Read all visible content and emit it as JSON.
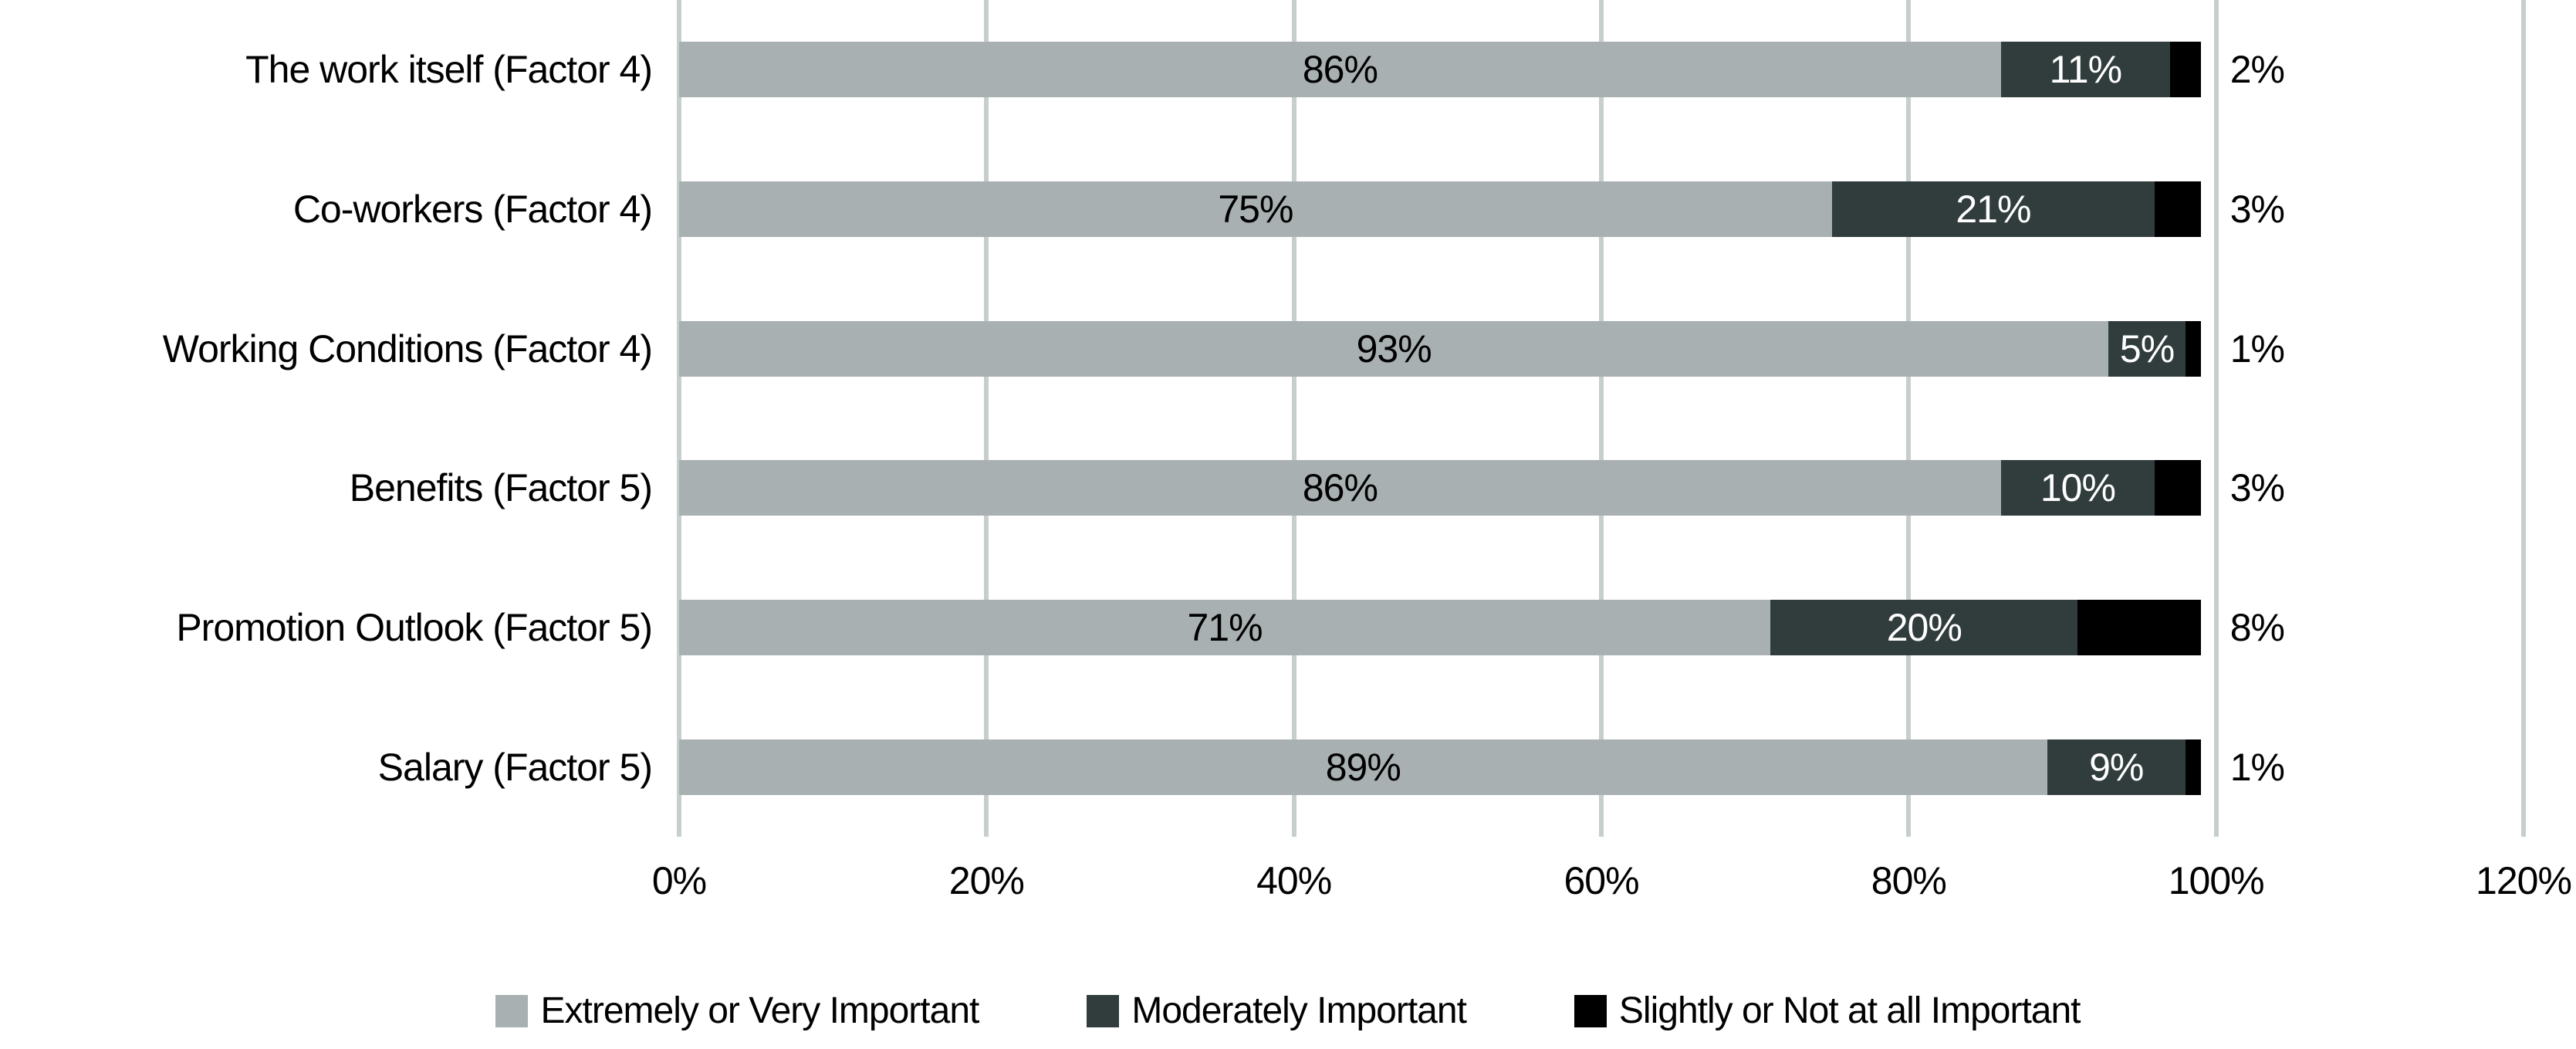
{
  "chart_data": {
    "type": "bar",
    "orientation": "horizontal_stacked",
    "title": "",
    "xlabel": "",
    "ylabel": "",
    "xlim": [
      0,
      120
    ],
    "x_ticks": [
      "0%",
      "20%",
      "40%",
      "60%",
      "80%",
      "100%",
      "120%"
    ],
    "grid": "vertical-only",
    "legend_position": "bottom",
    "background": "#ffffff",
    "gridline_color": "#c6cfcc",
    "categories": [
      "The work itself (Factor 4)",
      "Co-workers (Factor 4)",
      "Working Conditions (Factor 4)",
      "Benefits (Factor 5)",
      "Promotion Outlook (Factor 5)",
      "Salary (Factor 5)"
    ],
    "series": [
      {
        "name": "Extremely or Very Important",
        "color": "#a9b0b2",
        "label_color": "#000000",
        "values": [
          86,
          75,
          93,
          86,
          71,
          89
        ],
        "labels": [
          "86%",
          "75%",
          "93%",
          "86%",
          "71%",
          "89%"
        ]
      },
      {
        "name": "Moderately Important",
        "color": "#313d3d",
        "label_color": "#ffffff",
        "values": [
          11,
          21,
          5,
          10,
          20,
          9
        ],
        "labels": [
          "11%",
          "21%",
          "5%",
          "10%",
          "20%",
          "9%"
        ]
      },
      {
        "name": "Slightly or Not at all Important",
        "color": "#000000",
        "label_color": null,
        "values": [
          2,
          3,
          1,
          3,
          8,
          1
        ],
        "labels": [
          "2%",
          "3%",
          "1%",
          "3%",
          "8%",
          "1%"
        ]
      }
    ],
    "outside_labels": [
      "2%",
      "3%",
      "1%",
      "3%",
      "8%",
      "1%"
    ]
  }
}
